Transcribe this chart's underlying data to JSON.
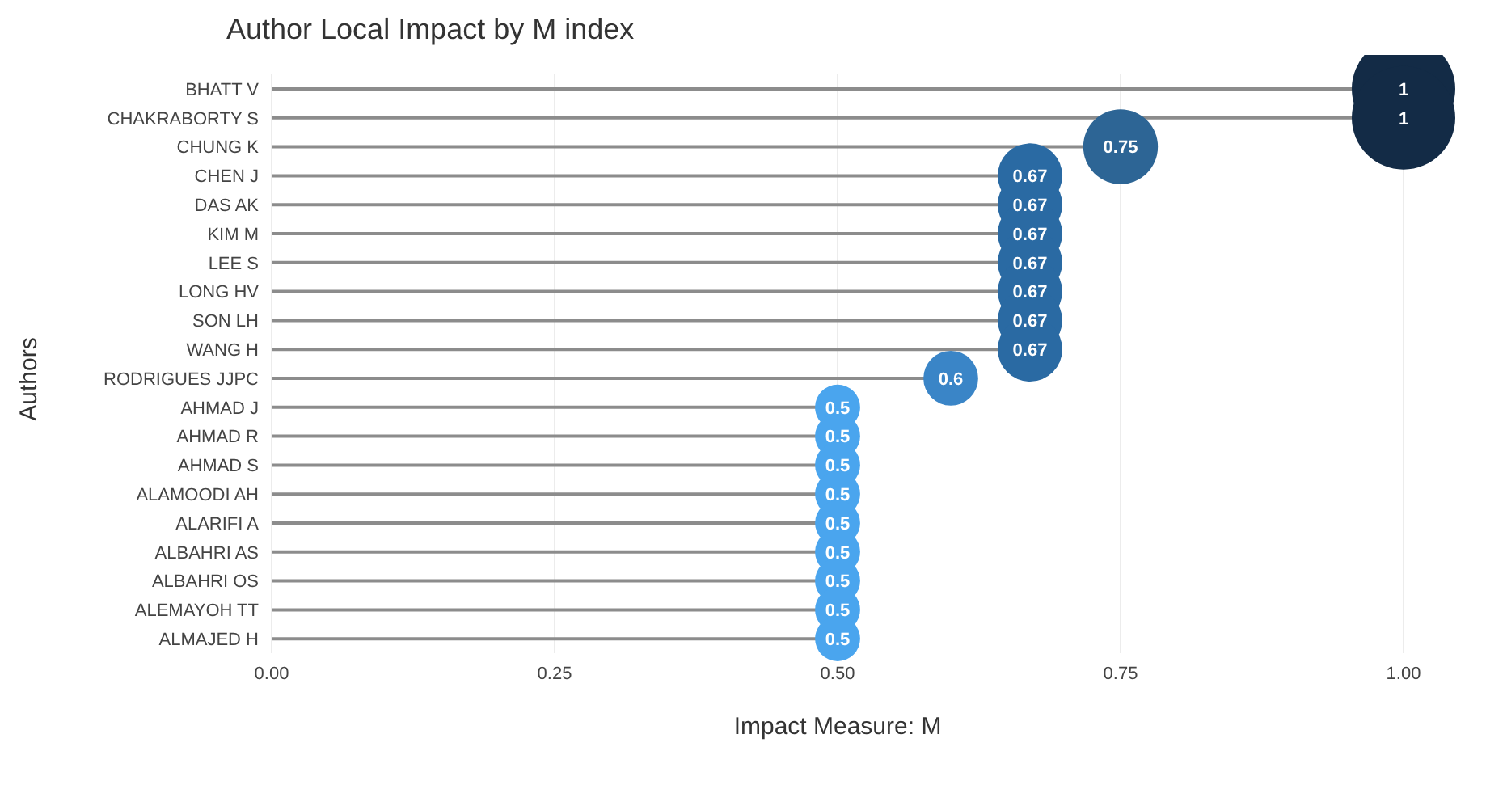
{
  "chart_data": {
    "type": "lollipop",
    "title": "Author Local Impact by M index",
    "xlabel": "Impact Measure: M",
    "ylabel": "Authors",
    "orientation": "horizontal",
    "categories": [
      "BHATT V",
      "CHAKRABORTY S",
      "CHUNG K",
      "CHEN J",
      "DAS AK",
      "KIM M",
      "LEE S",
      "LONG HV",
      "SON LH",
      "WANG H",
      "RODRIGUES JJPC",
      "AHMAD J",
      "AHMAD R",
      "AHMAD S",
      "ALAMOODI AH",
      "ALARIFI A",
      "ALBAHRI AS",
      "ALBAHRI OS",
      "ALEMAYOH TT",
      "ALMAJED H"
    ],
    "values": [
      1,
      1,
      0.75,
      0.67,
      0.67,
      0.67,
      0.67,
      0.67,
      0.67,
      0.67,
      0.6,
      0.5,
      0.5,
      0.5,
      0.5,
      0.5,
      0.5,
      0.5,
      0.5,
      0.5
    ],
    "value_labels": [
      "1",
      "1",
      "0.75",
      "0.67",
      "0.67",
      "0.67",
      "0.67",
      "0.67",
      "0.67",
      "0.67",
      "0.6",
      "0.5",
      "0.5",
      "0.5",
      "0.5",
      "0.5",
      "0.5",
      "0.5",
      "0.5",
      "0.5"
    ],
    "sizes": [
      1,
      1,
      0.52,
      0.39,
      0.39,
      0.39,
      0.39,
      0.39,
      0.39,
      0.39,
      0.28,
      0.19,
      0.19,
      0.19,
      0.19,
      0.19,
      0.19,
      0.19,
      0.19,
      0.19
    ],
    "colors": [
      "#132b46",
      "#132b46",
      "#2d6595",
      "#2a6aa3",
      "#2a6aa3",
      "#2a6aa3",
      "#2a6aa3",
      "#2a6aa3",
      "#2a6aa3",
      "#2a6aa3",
      "#3a85c7",
      "#4aa5ee",
      "#4aa5ee",
      "#4aa5ee",
      "#4aa5ee",
      "#4aa5ee",
      "#4aa5ee",
      "#4aa5ee",
      "#4aa5ee",
      "#4aa5ee"
    ],
    "xlim": [
      0,
      1
    ],
    "xticks": [
      {
        "value": 0,
        "label": "0.00"
      },
      {
        "value": 0.25,
        "label": "0.25"
      },
      {
        "value": 0.5,
        "label": "0.50"
      },
      {
        "value": 0.75,
        "label": "0.75"
      },
      {
        "value": 1,
        "label": "1.00"
      }
    ],
    "grid": "x"
  }
}
